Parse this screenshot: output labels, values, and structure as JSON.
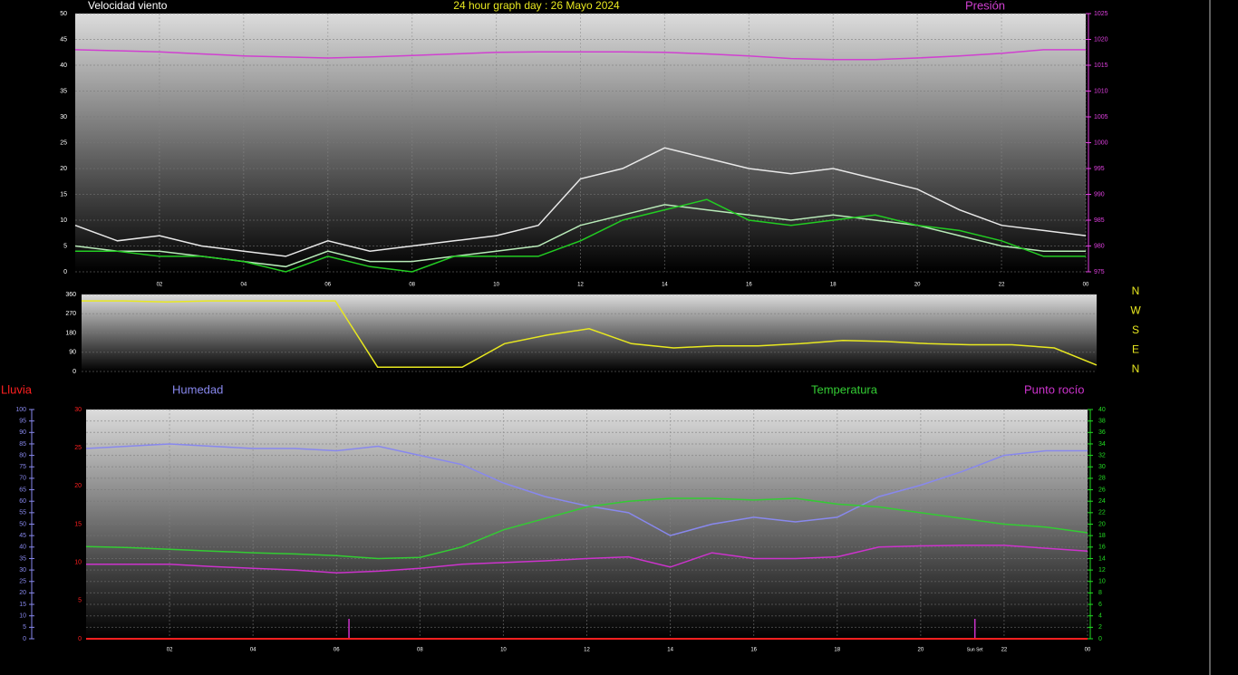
{
  "title": "24 hour graph day : 26 Mayo 2024",
  "chart_data": [
    {
      "type": "line",
      "title": "Velocidad viento",
      "x": [
        0,
        1,
        2,
        3,
        4,
        5,
        6,
        7,
        8,
        9,
        10,
        11,
        12,
        13,
        14,
        15,
        16,
        17,
        18,
        19,
        20,
        21,
        22,
        23,
        24
      ],
      "xlim": [
        0,
        24
      ],
      "xticks": [
        {
          "value": 2,
          "label": "02"
        },
        {
          "value": 4,
          "label": "04"
        },
        {
          "value": 6,
          "label": "06"
        },
        {
          "value": 8,
          "label": "08"
        },
        10,
        12,
        14,
        16,
        18,
        20,
        22,
        {
          "value": 24,
          "label": "00"
        }
      ],
      "ylim": [
        0,
        50
      ],
      "yticks": [
        0,
        5,
        10,
        15,
        20,
        25,
        30,
        35,
        40,
        45,
        50
      ],
      "ycolor": "#ffffff",
      "y2lim": [
        975,
        1025
      ],
      "y2ticks": [
        975,
        980,
        985,
        990,
        995,
        1000,
        1005,
        1010,
        1015,
        1020,
        1025
      ],
      "y2color": "#e040e0",
      "grid": true,
      "grid_axis": "y",
      "series": [
        {
          "color": "#e8e8e8",
          "axis": "y",
          "values": [
            9,
            6,
            7,
            5,
            4,
            3,
            6,
            4,
            5,
            6,
            7,
            9,
            18,
            20,
            24,
            22,
            20,
            19,
            20,
            18,
            16,
            12,
            9,
            8,
            7
          ]
        },
        {
          "color": "#b8eab8",
          "axis": "y",
          "values": [
            5,
            4,
            4,
            3,
            2,
            1,
            4,
            2,
            2,
            3,
            4,
            5,
            9,
            11,
            13,
            12,
            11,
            10,
            11,
            10,
            9,
            7,
            5,
            4,
            4
          ]
        },
        {
          "color": "#22cc22",
          "axis": "y",
          "values": [
            4,
            4,
            3,
            3,
            2,
            0,
            3,
            1,
            0,
            3,
            3,
            3,
            6,
            10,
            12,
            14,
            10,
            9,
            10,
            11,
            9,
            8,
            6,
            3,
            3
          ]
        },
        {
          "name": "Presión",
          "color": "#d040d0",
          "axis": "y2",
          "values": [
            1018,
            1017.8,
            1017.6,
            1017.2,
            1016.8,
            1016.6,
            1016.4,
            1016.6,
            1016.9,
            1017.2,
            1017.5,
            1017.6,
            1017.6,
            1017.6,
            1017.5,
            1017.2,
            1016.8,
            1016.3,
            1016.1,
            1016.1,
            1016.4,
            1016.8,
            1017.3,
            1018,
            1018
          ]
        }
      ]
    },
    {
      "type": "line",
      "x": [
        0,
        1,
        2,
        3,
        4,
        5,
        6,
        7,
        8,
        9,
        10,
        11,
        12,
        13,
        14,
        15,
        16,
        17,
        18,
        19,
        20,
        21,
        22,
        23,
        24
      ],
      "xlim": [
        0,
        24
      ],
      "ylim": [
        0,
        360
      ],
      "yticks": [
        0,
        90,
        180,
        270,
        360
      ],
      "ycolor": "#ffffff",
      "grid": true,
      "grid_axis": "y",
      "compass_labels": [
        "N",
        "W",
        "S",
        "E",
        "N"
      ],
      "series": [
        {
          "color": "#e8e820",
          "axis": "y",
          "values": [
            330,
            330,
            325,
            330,
            330,
            330,
            330,
            20,
            20,
            20,
            130,
            170,
            200,
            130,
            110,
            120,
            120,
            130,
            145,
            140,
            130,
            125,
            125,
            110,
            30
          ]
        }
      ]
    },
    {
      "type": "line",
      "x": [
        0,
        1,
        2,
        3,
        4,
        5,
        6,
        7,
        8,
        9,
        10,
        11,
        12,
        13,
        14,
        15,
        16,
        17,
        18,
        19,
        20,
        21,
        22,
        23,
        24
      ],
      "xlim": [
        0,
        24
      ],
      "xticks": [
        {
          "value": 2,
          "label": "02"
        },
        {
          "value": 4,
          "label": "04"
        },
        {
          "value": 6,
          "label": "06"
        },
        {
          "value": 8,
          "label": "08"
        },
        10,
        12,
        14,
        16,
        18,
        20,
        22,
        {
          "value": 24,
          "label": "00"
        }
      ],
      "ylim": [
        0,
        100
      ],
      "yticks": [
        0,
        5,
        10,
        15,
        20,
        25,
        30,
        35,
        40,
        45,
        50,
        55,
        60,
        65,
        70,
        75,
        80,
        85,
        90,
        95,
        100
      ],
      "ycolor": "#8888ee",
      "y2lim": [
        0,
        40
      ],
      "y2ticks": [
        0,
        2,
        4,
        6,
        8,
        10,
        12,
        14,
        16,
        18,
        20,
        22,
        24,
        26,
        28,
        30,
        32,
        34,
        36,
        38,
        40
      ],
      "y2color": "#22dd22",
      "y3lim": [
        0,
        30
      ],
      "y3ticks": [
        0,
        5,
        10,
        15,
        20,
        25,
        30
      ],
      "y3color": "#ff2020",
      "grid": true,
      "grid_axis": "y2",
      "event_lines": [
        6.3,
        21.3
      ],
      "annotations": [
        {
          "text": "Sun Set",
          "x": 21.3
        }
      ],
      "series": [
        {
          "name": "Lluvia",
          "color": "#ff2020",
          "axis": "y3",
          "values": [
            0,
            0,
            0,
            0,
            0,
            0,
            0,
            0,
            0,
            0,
            0,
            0,
            0,
            0,
            0,
            0,
            0,
            0,
            0,
            0,
            0,
            0,
            0,
            0,
            0
          ]
        },
        {
          "name": "Humedad",
          "color": "#8888ee",
          "axis": "y",
          "values": [
            83,
            84,
            85,
            84,
            83,
            83,
            82,
            84,
            80,
            76,
            68,
            62,
            58,
            55,
            45,
            50,
            53,
            51,
            53,
            62,
            67,
            73,
            80,
            82,
            82
          ]
        },
        {
          "name": "Temperatura",
          "color": "#33cc33",
          "axis": "y2",
          "values": [
            16.1,
            15.9,
            15.6,
            15.3,
            15,
            14.8,
            14.5,
            14,
            14.2,
            16,
            19,
            21,
            23,
            24,
            24.5,
            24.5,
            24.2,
            24.5,
            23.5,
            23,
            22,
            21,
            20,
            19.5,
            18.5
          ]
        },
        {
          "name": "Punto rocío",
          "color": "#cc33cc",
          "axis": "y2",
          "values": [
            13,
            13,
            13,
            12.6,
            12.3,
            12,
            11.5,
            11.8,
            12.3,
            13,
            13.3,
            13.6,
            14,
            14.3,
            12.5,
            15,
            14,
            14,
            14.3,
            16,
            16.2,
            16.3,
            16.3,
            15.8,
            15.3
          ]
        }
      ]
    }
  ]
}
